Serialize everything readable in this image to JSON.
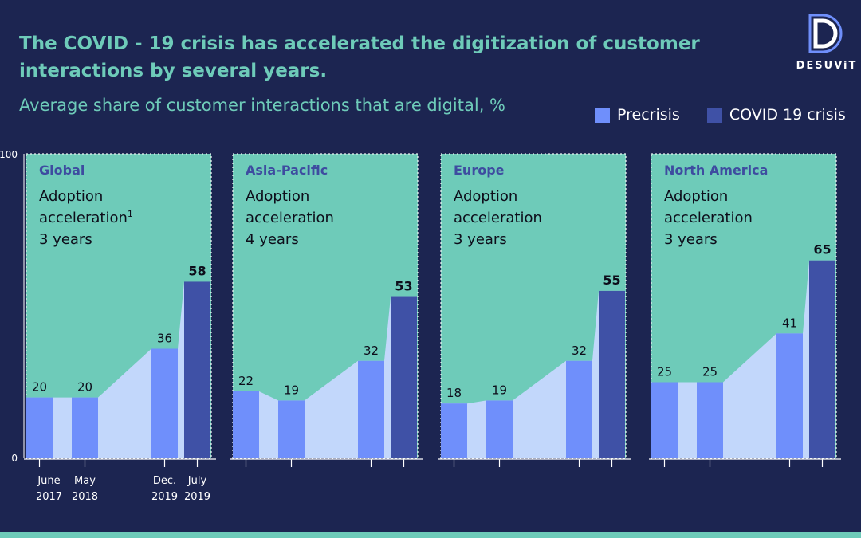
{
  "headline": "The COVID - 19 crisis has accelerated the digitization of customer interactions by several years.",
  "subtitle": "Average share of customer interactions that are digital, %",
  "logo": {
    "text": "DESUViT",
    "icon": "desuvit-d-logo-icon"
  },
  "colors": {
    "background": "#1c2551",
    "panel": "#6ecbb9",
    "precrisis": "#6f8ffb",
    "covid": "#3f51a6",
    "area": "#c2d7fb",
    "region_title": "#3e4ca0",
    "footer": "#6ecbb9"
  },
  "chart_data": {
    "type": "bar",
    "ylim": [
      0,
      100
    ],
    "y_ticks": [
      "0",
      "100"
    ],
    "categories": [
      "June 2017",
      "May 2018",
      "Dec. 2019",
      "July 2019"
    ],
    "category_lines": [
      [
        "June",
        "2017"
      ],
      [
        "May",
        "2018"
      ],
      [
        "Dec.",
        "2019"
      ],
      [
        "July",
        "2019"
      ]
    ],
    "legend": [
      {
        "name": "Precrisis",
        "color": "#6f8ffb"
      },
      {
        "name": "COVID 19 crisis",
        "color": "#3f51a6"
      }
    ],
    "legend_position": "top-right",
    "grid": false,
    "panels": [
      {
        "region": "Global",
        "label": "Adoption",
        "label2": "acceleration",
        "footnote": "1",
        "years": "3 years",
        "values": [
          20,
          20,
          36,
          58
        ]
      },
      {
        "region": "Asia-Pacific",
        "label": "Adoption",
        "label2": "acceleration",
        "footnote": "",
        "years": "4 years",
        "values": [
          22,
          19,
          32,
          53
        ]
      },
      {
        "region": "Europe",
        "label": "Adoption",
        "label2": "acceleration",
        "footnote": "",
        "years": "3 years",
        "values": [
          18,
          19,
          32,
          55
        ]
      },
      {
        "region": "North America",
        "label": "Adoption",
        "label2": "acceleration",
        "footnote": "",
        "years": "3 years",
        "values": [
          25,
          25,
          41,
          65
        ]
      }
    ]
  }
}
